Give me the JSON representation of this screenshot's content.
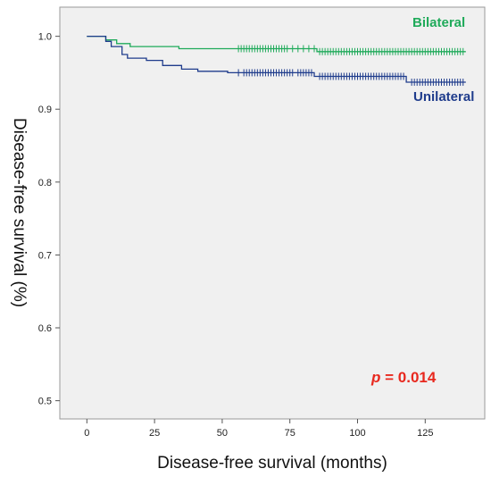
{
  "chart_data": {
    "type": "line",
    "title": "",
    "xlabel": "Disease-free survival (months)",
    "ylabel": "Disease-free survival (%)",
    "xlim": [
      -10,
      147
    ],
    "ylim": [
      0.475,
      1.04
    ],
    "x_ticks": [
      0,
      25,
      50,
      75,
      100,
      125
    ],
    "y_ticks": [
      0.5,
      0.6,
      0.7,
      0.8,
      0.9,
      1.0
    ],
    "grid": false,
    "background": "#f0f0f0",
    "annotation": {
      "italic": "p",
      "rest": " = 0.014",
      "color": "#e8281e"
    },
    "series": [
      {
        "name": "Bilateral",
        "color": "#1faa5a",
        "steps": [
          [
            0,
            1.0
          ],
          [
            7,
            0.995
          ],
          [
            11,
            0.99
          ],
          [
            16,
            0.986
          ],
          [
            34,
            0.983
          ],
          [
            85,
            0.979
          ],
          [
            140,
            0.979
          ]
        ],
        "censored": [
          56,
          57,
          58,
          59,
          60,
          61,
          62,
          63,
          64,
          65,
          66,
          67,
          68,
          69,
          70,
          71,
          72,
          73,
          74,
          76,
          78,
          80,
          82,
          84,
          86,
          87,
          88,
          89,
          90,
          91,
          92,
          93,
          94,
          95,
          96,
          97,
          98,
          99,
          100,
          101,
          102,
          103,
          104,
          105,
          106,
          107,
          108,
          109,
          110,
          111,
          112,
          113,
          114,
          115,
          116,
          117,
          118,
          119,
          120,
          121,
          122,
          123,
          124,
          125,
          126,
          127,
          128,
          129,
          130,
          131,
          132,
          133,
          134,
          135,
          136,
          137,
          138,
          139
        ]
      },
      {
        "name": "Unilateral",
        "color": "#1f3c8c",
        "steps": [
          [
            0,
            1.0
          ],
          [
            7,
            0.993
          ],
          [
            9,
            0.986
          ],
          [
            13,
            0.975
          ],
          [
            15,
            0.97
          ],
          [
            22,
            0.967
          ],
          [
            28,
            0.96
          ],
          [
            35,
            0.955
          ],
          [
            41,
            0.952
          ],
          [
            52,
            0.95
          ],
          [
            57,
            0.95
          ],
          [
            84,
            0.945
          ],
          [
            118,
            0.937
          ],
          [
            140,
            0.937
          ]
        ],
        "censored": [
          56,
          58,
          59,
          60,
          61,
          62,
          63,
          64,
          65,
          66,
          67,
          68,
          69,
          70,
          71,
          72,
          73,
          74,
          75,
          76,
          78,
          79,
          80,
          81,
          82,
          83,
          86,
          87,
          88,
          89,
          90,
          91,
          92,
          93,
          94,
          95,
          96,
          97,
          98,
          99,
          100,
          101,
          102,
          103,
          104,
          105,
          106,
          107,
          108,
          109,
          110,
          111,
          112,
          113,
          114,
          115,
          116,
          117,
          120,
          121,
          122,
          123,
          124,
          125,
          126,
          127,
          128,
          129,
          130,
          131,
          132,
          133,
          134,
          135,
          136,
          137,
          138,
          139
        ]
      }
    ]
  }
}
